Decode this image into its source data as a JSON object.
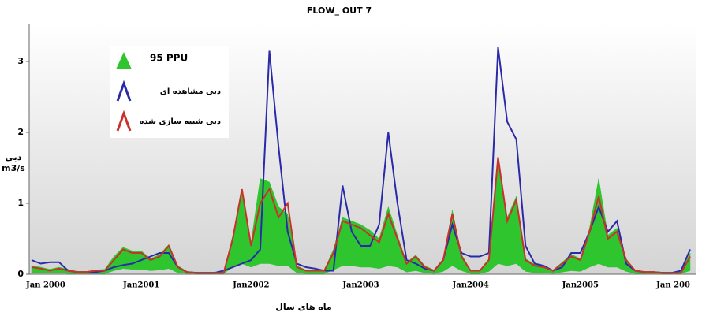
{
  "chart_data": {
    "type": "hydrograph",
    "title": "FLOW_ OUT 7",
    "y_label_lines": [
      "دبی",
      "m3/s"
    ],
    "x_label": "ماه های سال",
    "categories": [
      "Jan 2000",
      null,
      null,
      null,
      null,
      null,
      null,
      null,
      null,
      null,
      null,
      null,
      "Jan2001",
      null,
      null,
      null,
      null,
      null,
      null,
      null,
      null,
      null,
      null,
      null,
      "Jan2002",
      null,
      null,
      null,
      null,
      null,
      null,
      null,
      null,
      null,
      null,
      null,
      "Jan2003",
      null,
      null,
      null,
      null,
      null,
      null,
      null,
      null,
      null,
      null,
      null,
      "Jan2004",
      null,
      null,
      null,
      null,
      null,
      null,
      null,
      null,
      null,
      null,
      null,
      "Jan2005",
      null,
      null,
      null,
      null,
      null,
      null,
      null,
      null,
      null,
      null,
      null,
      "Jan 200"
    ],
    "ylim": [
      0,
      3.5
    ],
    "yticks": [
      0,
      1,
      2,
      3
    ],
    "series": [
      {
        "name": "95 PPU",
        "color": "#2ec52e",
        "upper": [
          0.12,
          0.1,
          0.07,
          0.1,
          0.07,
          0.04,
          0.04,
          0.06,
          0.07,
          0.25,
          0.38,
          0.33,
          0.33,
          0.22,
          0.28,
          0.42,
          0.12,
          0.04,
          0.03,
          0.03,
          0.03,
          0.03,
          0.55,
          1.15,
          0.45,
          1.35,
          1.3,
          0.95,
          0.85,
          0.12,
          0.06,
          0.06,
          0.06,
          0.35,
          0.8,
          0.75,
          0.7,
          0.62,
          0.5,
          0.95,
          0.55,
          0.17,
          0.27,
          0.12,
          0.06,
          0.22,
          0.9,
          0.28,
          0.06,
          0.06,
          0.22,
          1.6,
          0.8,
          1.1,
          0.22,
          0.14,
          0.12,
          0.06,
          0.17,
          0.28,
          0.22,
          0.65,
          1.35,
          0.55,
          0.65,
          0.22,
          0.06,
          0.04,
          0.04,
          0.03,
          0.03,
          0.03,
          0.3
        ],
        "lower": [
          0.02,
          0.02,
          0.02,
          0.02,
          0.01,
          0.01,
          0.01,
          0.01,
          0.01,
          0.05,
          0.08,
          0.07,
          0.07,
          0.05,
          0.06,
          0.08,
          0.02,
          0.01,
          0.01,
          0.01,
          0.01,
          0.01,
          0.1,
          0.15,
          0.1,
          0.15,
          0.15,
          0.12,
          0.12,
          0.02,
          0.01,
          0.01,
          0.01,
          0.06,
          0.12,
          0.12,
          0.1,
          0.1,
          0.08,
          0.12,
          0.1,
          0.03,
          0.05,
          0.02,
          0.01,
          0.04,
          0.12,
          0.05,
          0.01,
          0.01,
          0.04,
          0.15,
          0.12,
          0.15,
          0.04,
          0.02,
          0.02,
          0.01,
          0.03,
          0.05,
          0.04,
          0.1,
          0.15,
          0.1,
          0.1,
          0.04,
          0.01,
          0.01,
          0.01,
          0.01,
          0.01,
          0.01,
          0.05
        ]
      },
      {
        "name": "دبی مشاهده ای",
        "color": "#2a2aa8",
        "values": [
          0.2,
          0.15,
          0.17,
          0.17,
          0.05,
          0.03,
          0.03,
          0.03,
          0.05,
          0.1,
          0.13,
          0.15,
          0.2,
          0.25,
          0.3,
          0.3,
          0.1,
          0.03,
          0.02,
          0.02,
          0.02,
          0.05,
          0.1,
          0.15,
          0.2,
          0.35,
          3.15,
          1.8,
          0.6,
          0.15,
          0.1,
          0.08,
          0.05,
          0.05,
          1.25,
          0.6,
          0.4,
          0.4,
          0.7,
          2.0,
          1.0,
          0.2,
          0.15,
          0.08,
          0.05,
          0.2,
          0.7,
          0.3,
          0.25,
          0.25,
          0.3,
          3.2,
          2.15,
          1.9,
          0.4,
          0.15,
          0.12,
          0.05,
          0.1,
          0.3,
          0.3,
          0.6,
          0.95,
          0.6,
          0.75,
          0.15,
          0.05,
          0.03,
          0.03,
          0.02,
          0.02,
          0.05,
          0.35
        ]
      },
      {
        "name": "دبی شبیه سازی شده",
        "color": "#c8322a",
        "values": [
          0.1,
          0.08,
          0.05,
          0.08,
          0.05,
          0.03,
          0.03,
          0.05,
          0.05,
          0.2,
          0.35,
          0.3,
          0.3,
          0.2,
          0.25,
          0.4,
          0.1,
          0.03,
          0.02,
          0.02,
          0.02,
          0.02,
          0.5,
          1.2,
          0.4,
          1.0,
          1.2,
          0.8,
          1.0,
          0.1,
          0.05,
          0.05,
          0.05,
          0.3,
          0.75,
          0.7,
          0.65,
          0.55,
          0.45,
          0.85,
          0.5,
          0.15,
          0.25,
          0.1,
          0.05,
          0.2,
          0.85,
          0.25,
          0.05,
          0.05,
          0.2,
          1.65,
          0.75,
          1.05,
          0.2,
          0.12,
          0.1,
          0.05,
          0.15,
          0.25,
          0.2,
          0.6,
          1.1,
          0.5,
          0.6,
          0.2,
          0.05,
          0.03,
          0.03,
          0.02,
          0.02,
          0.02,
          0.25
        ]
      }
    ]
  }
}
